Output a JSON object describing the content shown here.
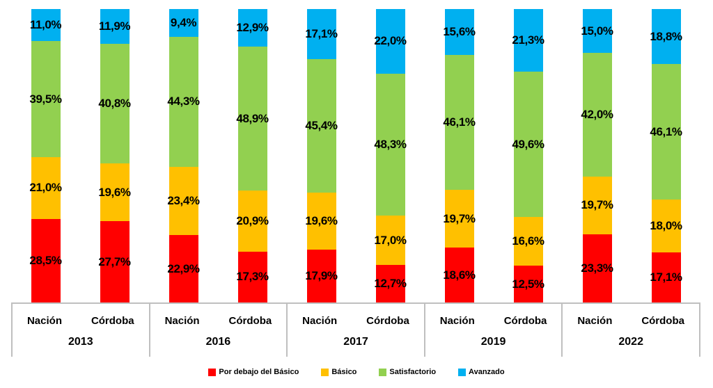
{
  "chart_data": {
    "type": "bar",
    "subtype": "stacked-100-percent-column",
    "value_format": "percent-comma-decimal",
    "grid": "off",
    "legend_position": "bottom",
    "axis_line_color": "#BFBFBF",
    "label_color": "#000000",
    "series_order_bottom_to_top": [
      "Por debajo del Básico",
      "Básico",
      "Satisfactorio",
      "Avanzado"
    ],
    "colors": {
      "Por debajo del Básico": "#FF0000",
      "Básico": "#FFC000",
      "Satisfactorio": "#92D050",
      "Avanzado": "#00B0F0"
    },
    "legend": [
      {
        "label": "Por debajo del Básico",
        "color": "#FF0000"
      },
      {
        "label": "Básico",
        "color": "#FFC000"
      },
      {
        "label": "Satisfactorio",
        "color": "#92D050"
      },
      {
        "label": "Avanzado",
        "color": "#00B0F0"
      }
    ],
    "groups": [
      {
        "year": "2013",
        "bars": [
          {
            "name": "Nación",
            "values": [
              28.5,
              21.0,
              39.5,
              11.0
            ],
            "labels": [
              "28,5%",
              "21,0%",
              "39,5%",
              "11,0%"
            ]
          },
          {
            "name": "Córdoba",
            "values": [
              27.7,
              19.6,
              40.8,
              11.9
            ],
            "labels": [
              "27,7%",
              "19,6%",
              "40,8%",
              "11,9%"
            ]
          }
        ]
      },
      {
        "year": "2016",
        "bars": [
          {
            "name": "Nación",
            "values": [
              22.9,
              23.4,
              44.3,
              9.4
            ],
            "labels": [
              "22,9%",
              "23,4%",
              "44,3%",
              "9,4%"
            ]
          },
          {
            "name": "Córdoba",
            "values": [
              17.3,
              20.9,
              48.9,
              12.9
            ],
            "labels": [
              "17,3%",
              "20,9%",
              "48,9%",
              "12,9%"
            ]
          }
        ]
      },
      {
        "year": "2017",
        "bars": [
          {
            "name": "Nación",
            "values": [
              17.9,
              19.6,
              45.4,
              17.1
            ],
            "labels": [
              "17,9%",
              "19,6%",
              "45,4%",
              "17,1%"
            ]
          },
          {
            "name": "Córdoba",
            "values": [
              12.7,
              17.0,
              48.3,
              22.0
            ],
            "labels": [
              "12,7%",
              "17,0%",
              "48,3%",
              "22,0%"
            ]
          }
        ]
      },
      {
        "year": "2019",
        "bars": [
          {
            "name": "Nación",
            "values": [
              18.6,
              19.7,
              46.1,
              15.6
            ],
            "labels": [
              "18,6%",
              "19,7%",
              "46,1%",
              "15,6%"
            ]
          },
          {
            "name": "Córdoba",
            "values": [
              12.5,
              16.6,
              49.6,
              21.3
            ],
            "labels": [
              "12,5%",
              "16,6%",
              "49,6%",
              "21,3%"
            ]
          }
        ]
      },
      {
        "year": "2022",
        "bars": [
          {
            "name": "Nación",
            "values": [
              23.3,
              19.7,
              42.0,
              15.0
            ],
            "labels": [
              "23,3%",
              "19,7%",
              "42,0%",
              "15,0%"
            ]
          },
          {
            "name": "Córdoba",
            "values": [
              17.1,
              18.0,
              46.1,
              18.8
            ],
            "labels": [
              "17,1%",
              "18,0%",
              "46,1%",
              "18,8%"
            ]
          }
        ]
      }
    ]
  }
}
